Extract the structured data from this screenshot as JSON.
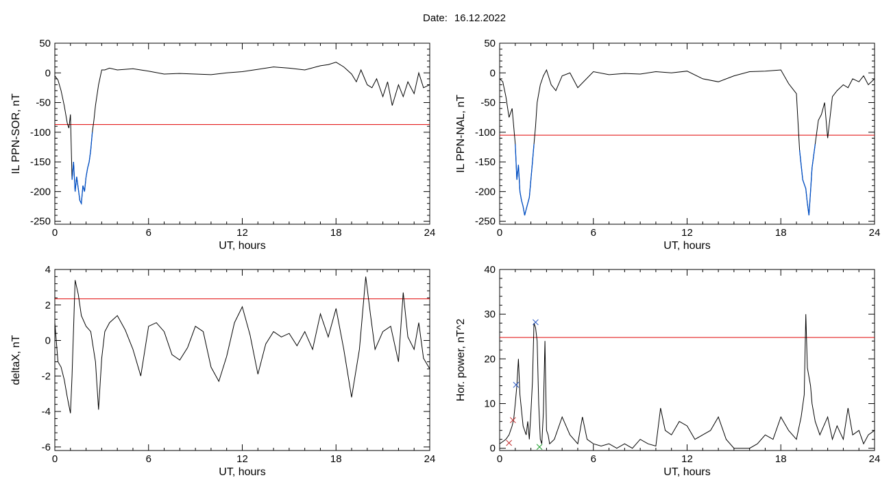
{
  "header": {
    "date_label": "Date:",
    "date_value": "16.12.2022"
  },
  "chart_data": [
    {
      "id": "il-sor",
      "type": "line",
      "xlabel": "UT, hours",
      "ylabel": "IL PPN-SOR, nT",
      "xlim": [
        0,
        24
      ],
      "ylim": [
        -255,
        50
      ],
      "xticks": [
        0,
        6,
        12,
        18,
        24
      ],
      "yticks": [
        50,
        0,
        -50,
        -100,
        -150,
        -200,
        -250
      ],
      "threshold": -87,
      "colors": {
        "line": "#000000",
        "below": "#0050c8",
        "threshold": "#e00000"
      },
      "series": [
        {
          "x": [
            0,
            0.2,
            0.4,
            0.6,
            0.8,
            0.9,
            1.0,
            1.1,
            1.2,
            1.3,
            1.4,
            1.5,
            1.6,
            1.7,
            1.8,
            1.9,
            2.0,
            2.1,
            2.2,
            2.3,
            2.4,
            2.5,
            2.6,
            2.8,
            3.0,
            3.2,
            3.5,
            4,
            5,
            6,
            7,
            8,
            9,
            10,
            11,
            12,
            13,
            14,
            15,
            16,
            17,
            17.5,
            18,
            18.5,
            19,
            19.3,
            19.6,
            20,
            20.3,
            20.6,
            21,
            21.3,
            21.6,
            22,
            22.3,
            22.6,
            23,
            23.3,
            23.6,
            24
          ],
          "y": [
            -5,
            -12,
            -30,
            -55,
            -85,
            -93,
            -70,
            -180,
            -150,
            -200,
            -175,
            -195,
            -215,
            -220,
            -190,
            -200,
            -175,
            -160,
            -150,
            -130,
            -100,
            -80,
            -55,
            -20,
            5,
            5,
            8,
            5,
            7,
            3,
            -2,
            -1,
            -2,
            -3,
            0,
            2,
            6,
            10,
            8,
            5,
            12,
            14,
            18,
            10,
            -2,
            -15,
            5,
            -20,
            -25,
            -10,
            -40,
            -15,
            -55,
            -20,
            -40,
            -15,
            -35,
            0,
            -25,
            -20
          ]
        }
      ]
    },
    {
      "id": "il-nal",
      "type": "line",
      "xlabel": "UT, hours",
      "ylabel": "IL PPN-NAL, nT",
      "xlim": [
        0,
        24
      ],
      "ylim": [
        -255,
        50
      ],
      "xticks": [
        0,
        6,
        12,
        18,
        24
      ],
      "yticks": [
        50,
        0,
        -50,
        -100,
        -150,
        -200,
        -250
      ],
      "threshold": -105,
      "colors": {
        "line": "#000000",
        "below": "#0050c8",
        "threshold": "#e00000"
      },
      "series": [
        {
          "x": [
            0,
            0.2,
            0.4,
            0.6,
            0.8,
            1.0,
            1.1,
            1.2,
            1.3,
            1.4,
            1.5,
            1.6,
            1.7,
            1.8,
            1.9,
            2.0,
            2.1,
            2.2,
            2.3,
            2.4,
            2.6,
            2.8,
            3.0,
            3.3,
            3.6,
            4,
            4.5,
            5,
            6,
            7,
            8,
            9,
            10,
            11,
            12,
            13,
            14,
            15,
            16,
            17,
            18,
            18.5,
            19,
            19.2,
            19.4,
            19.6,
            19.7,
            19.8,
            19.9,
            20,
            20.2,
            20.4,
            20.6,
            20.8,
            21,
            21.3,
            21.6,
            22,
            22.3,
            22.6,
            23,
            23.3,
            23.6,
            24
          ],
          "y": [
            -10,
            -15,
            -40,
            -75,
            -60,
            -120,
            -180,
            -155,
            -200,
            -215,
            -225,
            -240,
            -230,
            -220,
            -210,
            -180,
            -150,
            -120,
            -90,
            -50,
            -20,
            -5,
            5,
            -20,
            -30,
            -5,
            0,
            -25,
            2,
            -3,
            -1,
            -2,
            2,
            0,
            3,
            -10,
            -15,
            -5,
            2,
            3,
            5,
            -18,
            -35,
            -130,
            -180,
            -195,
            -220,
            -240,
            -200,
            -160,
            -120,
            -80,
            -70,
            -50,
            -110,
            -40,
            -30,
            -20,
            -25,
            -10,
            -15,
            -5,
            -20,
            -10
          ]
        }
      ]
    },
    {
      "id": "delta-x",
      "type": "line",
      "xlabel": "UT, hours",
      "ylabel": "deltaX, nT",
      "xlim": [
        0,
        24
      ],
      "ylim": [
        -6.2,
        4
      ],
      "xticks": [
        0,
        6,
        12,
        18,
        24
      ],
      "yticks": [
        4,
        2,
        0,
        -2,
        -4,
        -6
      ],
      "threshold": 2.35,
      "colors": {
        "line": "#000000",
        "threshold": "#e00000"
      },
      "series": [
        {
          "x": [
            0,
            0.2,
            0.4,
            0.6,
            0.8,
            1.0,
            1.1,
            1.3,
            1.5,
            1.7,
            2.0,
            2.3,
            2.6,
            2.8,
            3.0,
            3.2,
            3.5,
            4,
            4.5,
            5,
            5.5,
            6,
            6.5,
            7,
            7.5,
            8,
            8.5,
            9,
            9.5,
            10,
            10.5,
            11,
            11.5,
            12,
            12.5,
            13,
            13.5,
            14,
            14.5,
            15,
            15.5,
            16,
            16.5,
            17,
            17.5,
            18,
            18.5,
            19,
            19.5,
            19.9,
            20.2,
            20.5,
            21,
            21.5,
            22,
            22.3,
            22.6,
            23,
            23.3,
            23.6,
            24
          ],
          "y": [
            1,
            -1.2,
            -1.5,
            -2.2,
            -3.2,
            -4.1,
            -2,
            3.4,
            2.6,
            1.4,
            0.8,
            0.5,
            -1.2,
            -3.9,
            -1,
            0.5,
            1,
            1.4,
            0.6,
            -0.5,
            -2,
            0.8,
            1,
            0.5,
            -0.8,
            -1.1,
            -0.4,
            0.8,
            0.5,
            -1.5,
            -2.3,
            -0.9,
            1,
            1.9,
            0.3,
            -1.9,
            -0.2,
            0.5,
            0.2,
            0.4,
            -0.3,
            0.5,
            -0.5,
            1.5,
            0.2,
            1.8,
            -0.5,
            -3.2,
            -0.5,
            3.6,
            1.5,
            -0.5,
            0.5,
            0.8,
            -1.2,
            2.7,
            0.2,
            -0.5,
            1,
            -1,
            -1.6
          ]
        }
      ]
    },
    {
      "id": "hor-power",
      "type": "line",
      "xlabel": "UT, hours",
      "ylabel": "Hor. power, nT^2",
      "xlim": [
        0,
        24
      ],
      "ylim": [
        -0.5,
        40
      ],
      "xticks": [
        0,
        6,
        12,
        18,
        24
      ],
      "yticks": [
        40,
        30,
        20,
        10,
        0
      ],
      "threshold": 24.8,
      "colors": {
        "line": "#000000",
        "threshold": "#e00000"
      },
      "series": [
        {
          "x": [
            0,
            0.2,
            0.4,
            0.6,
            0.8,
            0.9,
            1.0,
            1.1,
            1.2,
            1.3,
            1.5,
            1.7,
            1.8,
            1.9,
            2.0,
            2.1,
            2.2,
            2.3,
            2.4,
            2.5,
            2.6,
            2.7,
            2.8,
            2.9,
            3.0,
            3.1,
            3.2,
            3.5,
            4,
            4.5,
            5,
            5.3,
            5.6,
            6,
            6.5,
            7,
            7.5,
            8,
            8.5,
            9,
            9.5,
            10,
            10.3,
            10.6,
            11,
            11.5,
            12,
            12.5,
            13,
            13.5,
            14,
            14.5,
            15,
            15.5,
            16,
            16.5,
            17,
            17.5,
            18,
            18.5,
            19,
            19.3,
            19.5,
            19.6,
            19.7,
            19.9,
            20,
            20.2,
            20.5,
            21,
            21.3,
            21.6,
            22,
            22.3,
            22.6,
            23,
            23.3,
            23.6,
            24
          ],
          "y": [
            1,
            1.5,
            2,
            3,
            5,
            6.5,
            10,
            14,
            20,
            12,
            5,
            3,
            6,
            2,
            8,
            15,
            28,
            27,
            24,
            10,
            2,
            1,
            8,
            24,
            4,
            3,
            1,
            2,
            7,
            3,
            1,
            7,
            2,
            1,
            0.5,
            1,
            0,
            1,
            0,
            2,
            1,
            0.5,
            9,
            4,
            3,
            6,
            5,
            2,
            3,
            4,
            7,
            2,
            0,
            0,
            0,
            1,
            3,
            2,
            7,
            4,
            2,
            7,
            12,
            30,
            18,
            14,
            10,
            6,
            3,
            7,
            2,
            5,
            2,
            9,
            3,
            4,
            1,
            3,
            4
          ]
        }
      ],
      "markers": [
        {
          "x": 0.6,
          "y": 1.2,
          "color": "#c02020"
        },
        {
          "x": 0.85,
          "y": 6.3,
          "color": "#c02020"
        },
        {
          "x": 1.05,
          "y": 14.2,
          "color": "#2050c0"
        },
        {
          "x": 2.3,
          "y": 28.2,
          "color": "#2050c0"
        },
        {
          "x": 2.55,
          "y": 0.3,
          "color": "#20a030"
        }
      ]
    }
  ]
}
